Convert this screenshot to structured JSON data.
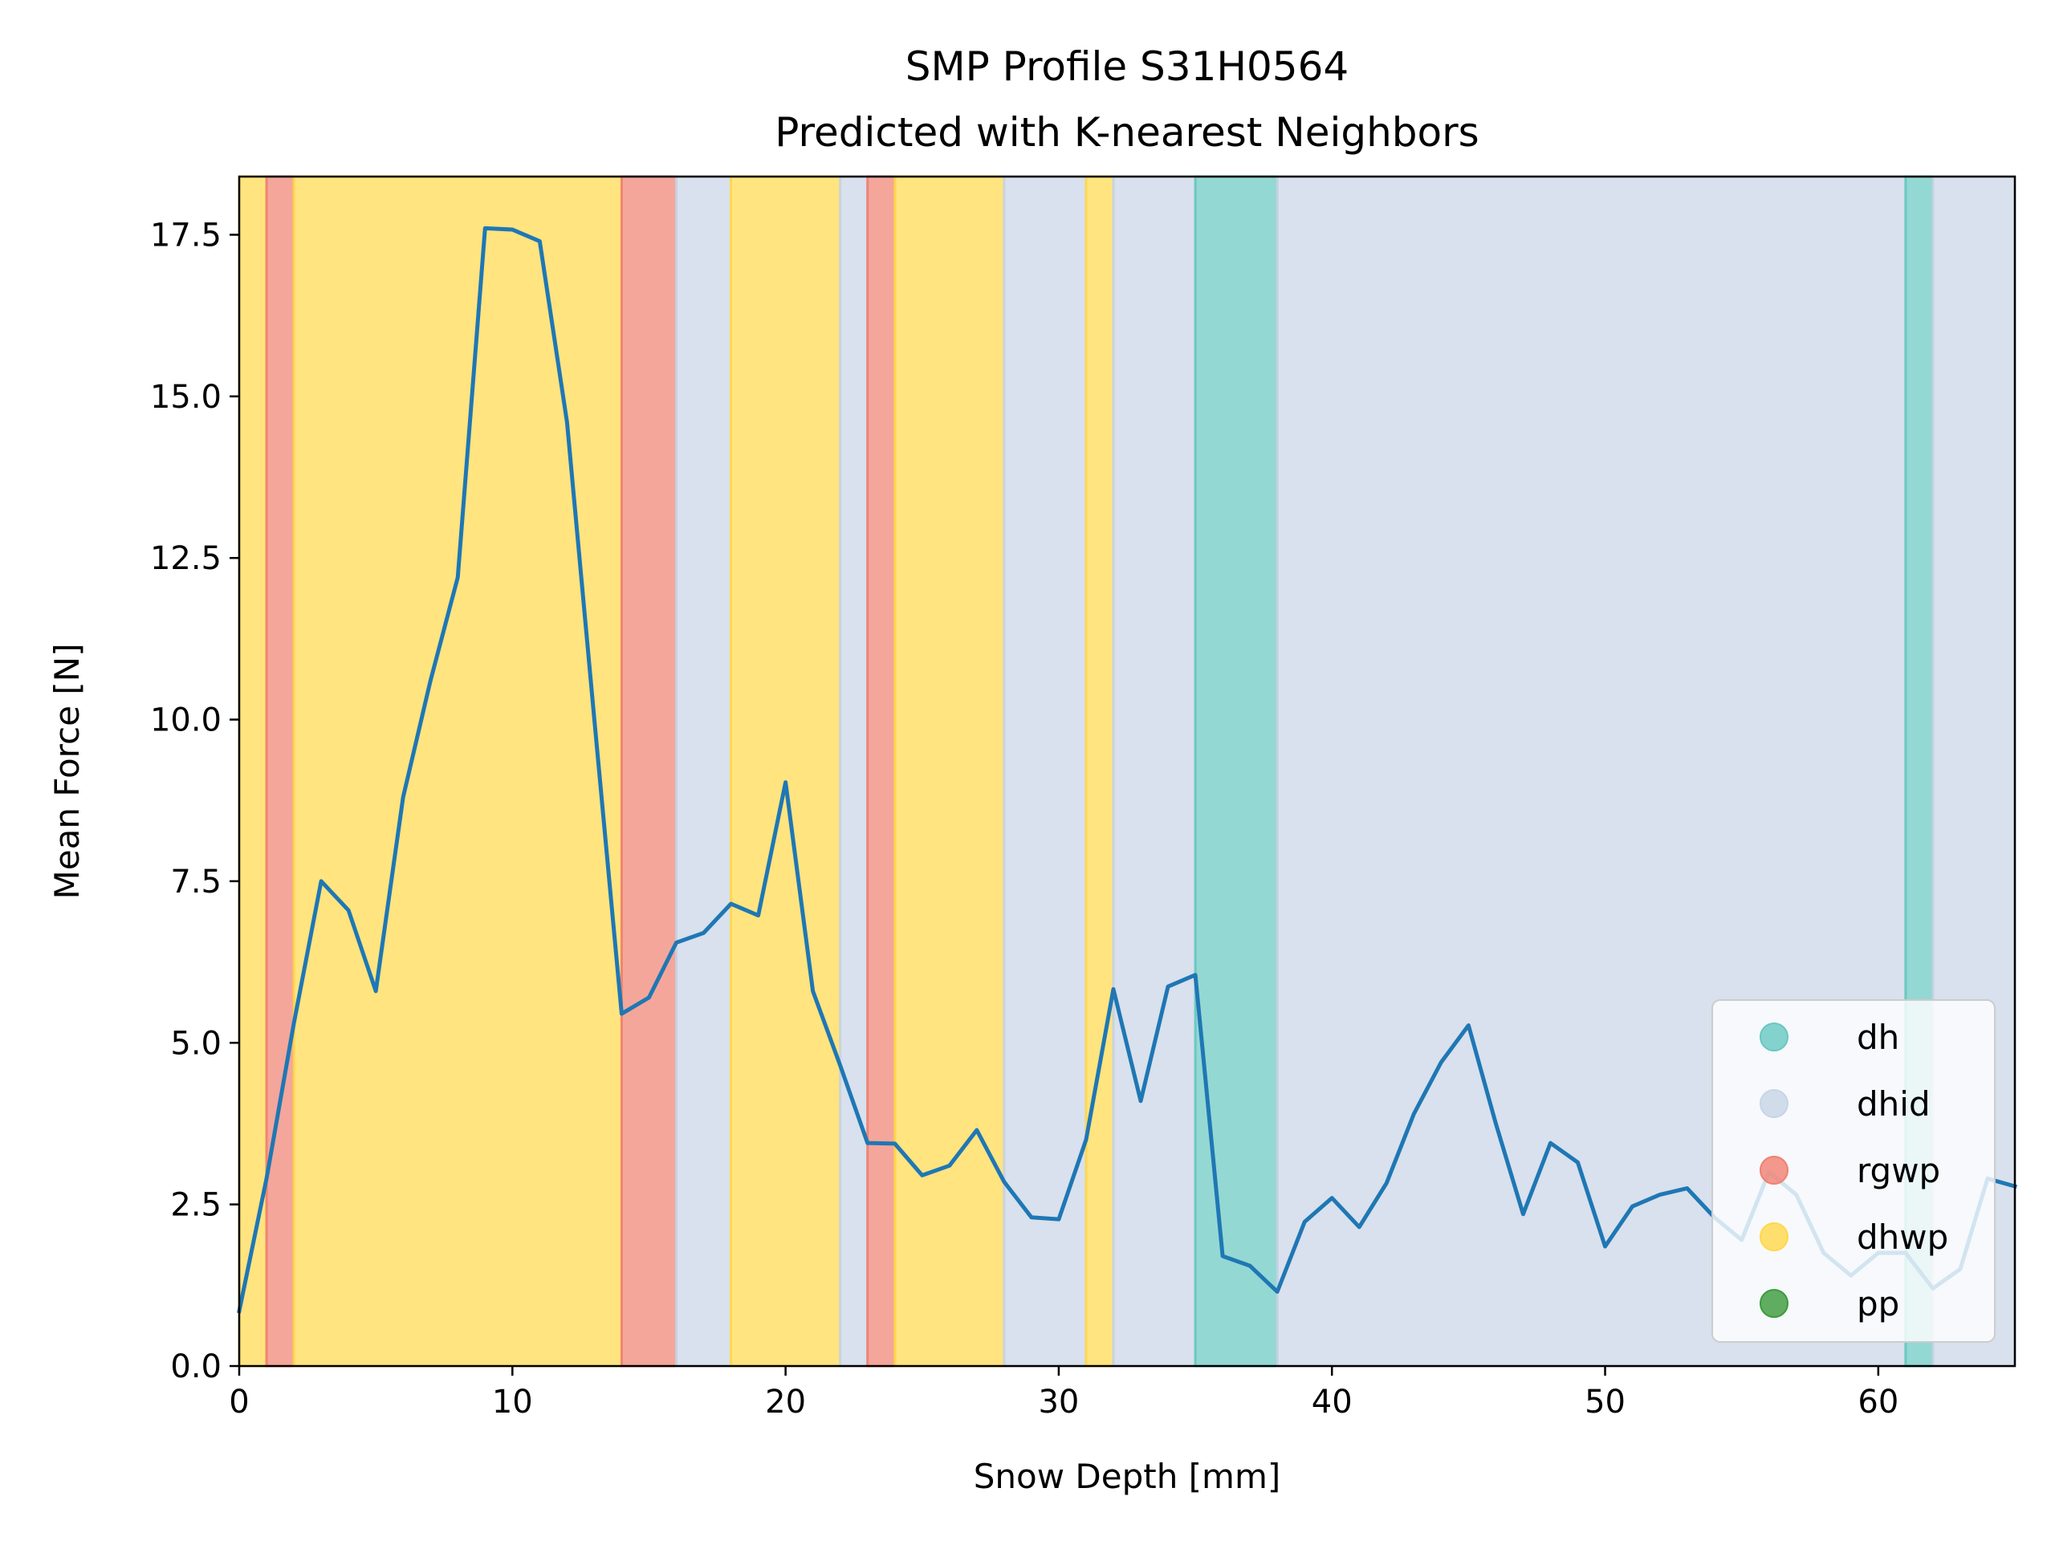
{
  "chart_data": {
    "type": "line",
    "title": "SMP Profile S31H0564",
    "subtitle": "Predicted with K-nearest Neighbors",
    "xlabel": "Snow Depth [mm]",
    "ylabel": "Mean Force [N]",
    "xlim": [
      0,
      65
    ],
    "ylim": [
      0,
      18.4
    ],
    "xticks": [
      0,
      10,
      20,
      30,
      40,
      50,
      60
    ],
    "yticks": [
      0.0,
      2.5,
      5.0,
      7.5,
      10.0,
      12.5,
      15.0,
      17.5
    ],
    "xtick_labels": [
      "0",
      "10",
      "20",
      "30",
      "40",
      "50",
      "60"
    ],
    "ytick_labels": [
      "0.0",
      "2.5",
      "5.0",
      "7.5",
      "10.0",
      "12.5",
      "15.0",
      "17.5"
    ],
    "grid": false,
    "legend_position": "lower right",
    "classes": [
      {
        "name": "dh",
        "color": "#66c8c0"
      },
      {
        "name": "dhid",
        "color": "#c7d4e6"
      },
      {
        "name": "rgwp",
        "color": "#f08070"
      },
      {
        "name": "dhwp",
        "color": "#ffd84a"
      },
      {
        "name": "pp",
        "color": "#3a9a3a"
      }
    ],
    "bands": [
      {
        "start": 0,
        "end": 1,
        "class": "dhwp"
      },
      {
        "start": 1,
        "end": 2,
        "class": "rgwp"
      },
      {
        "start": 2,
        "end": 14,
        "class": "dhwp"
      },
      {
        "start": 14,
        "end": 16,
        "class": "rgwp"
      },
      {
        "start": 16,
        "end": 18,
        "class": "dhid"
      },
      {
        "start": 18,
        "end": 22,
        "class": "dhwp"
      },
      {
        "start": 22,
        "end": 23,
        "class": "dhid"
      },
      {
        "start": 23,
        "end": 24,
        "class": "rgwp"
      },
      {
        "start": 24,
        "end": 28,
        "class": "dhwp"
      },
      {
        "start": 28,
        "end": 31,
        "class": "dhid"
      },
      {
        "start": 31,
        "end": 32,
        "class": "dhwp"
      },
      {
        "start": 32,
        "end": 35,
        "class": "dhid"
      },
      {
        "start": 35,
        "end": 38,
        "class": "dh"
      },
      {
        "start": 38,
        "end": 61,
        "class": "dhid"
      },
      {
        "start": 61,
        "end": 62,
        "class": "dh"
      },
      {
        "start": 62,
        "end": 65,
        "class": "dhid"
      }
    ],
    "series": [
      {
        "color": "#1f77b4",
        "x": [
          0,
          1,
          2,
          3,
          4,
          5,
          6,
          7,
          8,
          9,
          10,
          11,
          12,
          13,
          14,
          15,
          16,
          17,
          18,
          19,
          20,
          21,
          22,
          23,
          24,
          25,
          26,
          27,
          28,
          29,
          30,
          31,
          32,
          33,
          34,
          35,
          36,
          37,
          38,
          39,
          40,
          41,
          42,
          43,
          44,
          45,
          46,
          47,
          48,
          49,
          50,
          51,
          52,
          53,
          54,
          55,
          56,
          57,
          58,
          59,
          60,
          61,
          62,
          63,
          64,
          65
        ],
        "values": [
          0.85,
          2.9,
          5.3,
          7.5,
          7.05,
          5.8,
          8.8,
          10.6,
          12.2,
          17.6,
          17.58,
          17.4,
          14.6,
          10.0,
          5.45,
          5.7,
          6.55,
          6.7,
          7.15,
          6.97,
          9.03,
          5.8,
          4.65,
          3.45,
          3.44,
          2.95,
          3.1,
          3.65,
          2.85,
          2.3,
          2.27,
          3.5,
          5.83,
          4.1,
          5.87,
          6.05,
          1.7,
          1.55,
          1.15,
          2.23,
          2.6,
          2.15,
          2.83,
          3.9,
          4.7,
          5.27,
          3.75,
          2.35,
          3.45,
          3.15,
          1.85,
          2.47,
          2.65,
          2.75,
          2.3,
          1.95,
          3.0,
          2.65,
          1.75,
          1.4,
          1.75,
          1.75,
          1.2,
          1.5,
          2.9,
          2.78
        ]
      }
    ]
  }
}
